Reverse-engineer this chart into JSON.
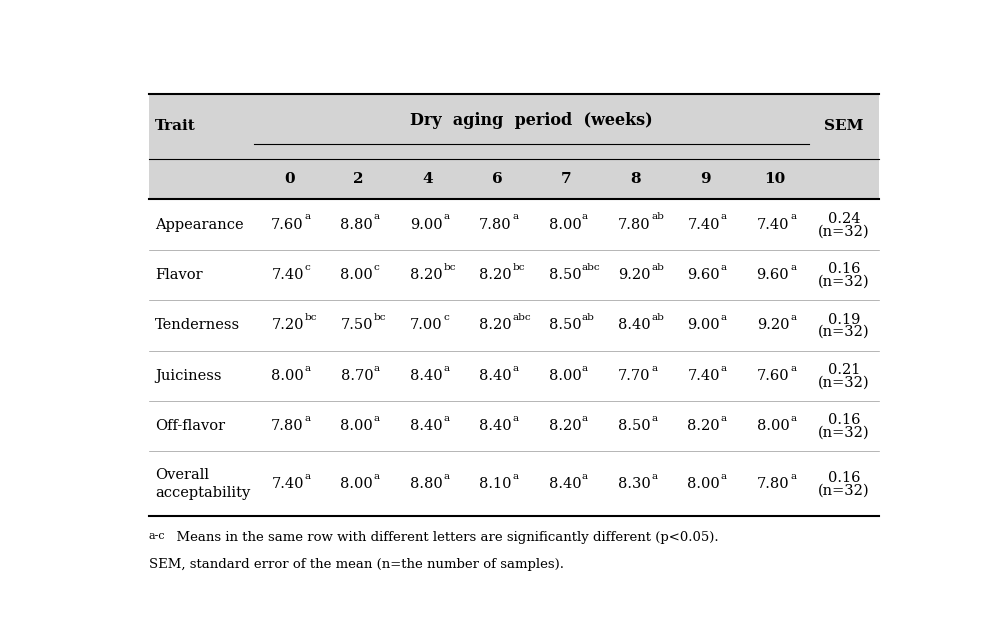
{
  "title": "Dry  aging  period  (weeks)",
  "col_header_trait": "Trait",
  "col_header_sem": "SEM",
  "col_weeks": [
    "0",
    "2",
    "4",
    "6",
    "7",
    "8",
    "9",
    "10"
  ],
  "rows": [
    {
      "trait": "Appearance",
      "values": [
        "7.60",
        "8.80",
        "9.00",
        "7.80",
        "8.00",
        "7.80",
        "7.40",
        "7.40"
      ],
      "superscripts": [
        "a",
        "a",
        "a",
        "a",
        "a",
        "ab",
        "a",
        "a"
      ],
      "sem_line1": "0.24",
      "sem_line2": "(n=32)"
    },
    {
      "trait": "Flavor",
      "values": [
        "7.40",
        "8.00",
        "8.20",
        "8.20",
        "8.50",
        "9.20",
        "9.60",
        "9.60"
      ],
      "superscripts": [
        "c",
        "c",
        "bc",
        "bc",
        "abc",
        "ab",
        "a",
        "a"
      ],
      "sem_line1": "0.16",
      "sem_line2": "(n=32)"
    },
    {
      "trait": "Tenderness",
      "values": [
        "7.20",
        "7.50",
        "7.00",
        "8.20",
        "8.50",
        "8.40",
        "9.00",
        "9.20"
      ],
      "superscripts": [
        "bc",
        "bc",
        "c",
        "abc",
        "ab",
        "ab",
        "a",
        "a"
      ],
      "sem_line1": "0.19",
      "sem_line2": "(n=32)"
    },
    {
      "trait": "Juiciness",
      "values": [
        "8.00",
        "8.70",
        "8.40",
        "8.40",
        "8.00",
        "7.70",
        "7.40",
        "7.60"
      ],
      "superscripts": [
        "a",
        "a",
        "a",
        "a",
        "a",
        "a",
        "a",
        "a"
      ],
      "sem_line1": "0.21",
      "sem_line2": "(n=32)"
    },
    {
      "trait": "Off-flavor",
      "values": [
        "7.80",
        "8.00",
        "8.40",
        "8.40",
        "8.20",
        "8.50",
        "8.20",
        "8.00"
      ],
      "superscripts": [
        "a",
        "a",
        "a",
        "a",
        "a",
        "a",
        "a",
        "a"
      ],
      "sem_line1": "0.16",
      "sem_line2": "(n=32)"
    },
    {
      "trait": "Overall\nacceptability",
      "values": [
        "7.40",
        "8.00",
        "8.80",
        "8.10",
        "8.40",
        "8.30",
        "8.00",
        "7.80"
      ],
      "superscripts": [
        "a",
        "a",
        "a",
        "a",
        "a",
        "a",
        "a",
        "a"
      ],
      "sem_line1": "0.16",
      "sem_line2": "(n=32)"
    }
  ],
  "footnote1_prefix": "a-c",
  "footnote1_body": "  Means in the same row with different letters are significantly different (p<0.05).",
  "footnote2": "SEM, standard error of the mean (n=the number of samples).",
  "header_bg": "#d4d4d4",
  "text_color": "#000000",
  "font_size": 10.5,
  "header_font_size": 11,
  "sup_font_size": 7.5,
  "footnote_font_size": 9.5
}
